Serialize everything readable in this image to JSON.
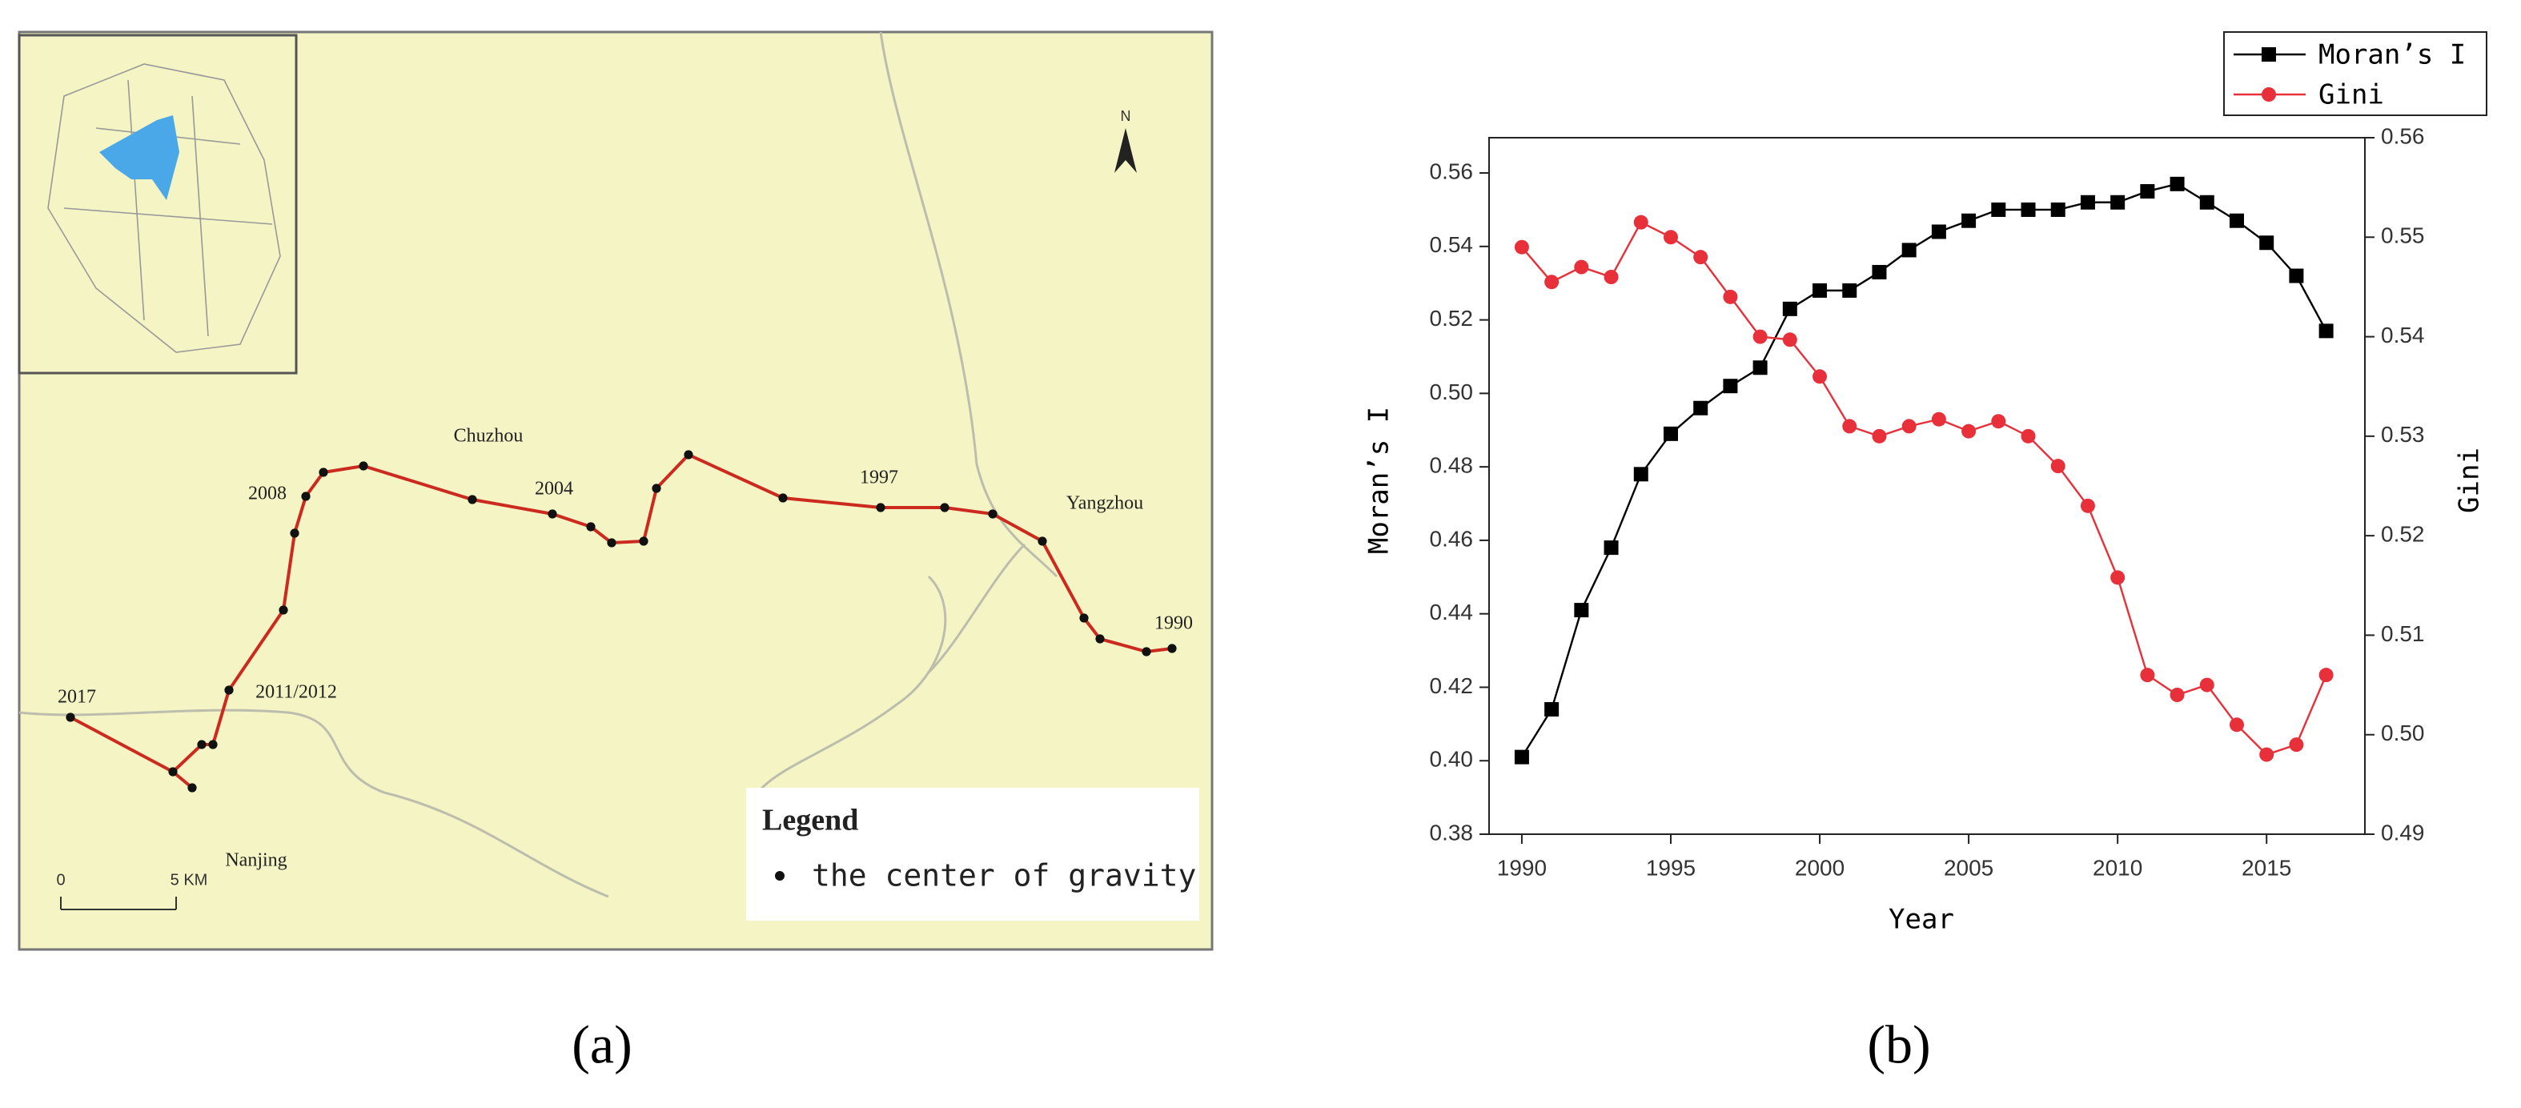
{
  "map": {
    "caption": "(a)",
    "north": "N",
    "places": [
      "Chuzhou",
      "Yangzhou",
      "Nanjing"
    ],
    "years": [
      "2008",
      "2004",
      "1997",
      "1990",
      "2017",
      "2011/2012"
    ],
    "legend_title": "Legend",
    "legend_item": "the center of gravity",
    "scale_labels": [
      "0",
      "5 KM"
    ]
  },
  "chart_data": {
    "type": "line",
    "caption": "(b)",
    "xlabel": "Year",
    "ylabel": "Moran’s I",
    "y2label": "Gini",
    "x": [
      1990,
      1991,
      1992,
      1993,
      1994,
      1995,
      1996,
      1997,
      1998,
      1999,
      2000,
      2001,
      2002,
      2003,
      2004,
      2005,
      2006,
      2007,
      2008,
      2009,
      2010,
      2011,
      2012,
      2013,
      2014,
      2015,
      2016,
      2017
    ],
    "xlim": [
      1988.9,
      2018.3
    ],
    "xticks": [
      1990,
      1995,
      2000,
      2005,
      2010,
      2015
    ],
    "ylim": [
      0.38,
      0.5696
    ],
    "yticks": [
      0.38,
      {
        "value": 0.4,
        "label": "0.40"
      },
      0.42,
      0.44,
      0.46,
      0.48,
      {
        "value": 0.5,
        "label": "0.50"
      },
      0.52,
      0.54,
      0.56
    ],
    "y2lim": [
      0.49,
      0.56
    ],
    "y2ticks": [
      0.49,
      {
        "value": 0.5,
        "label": "0.50"
      },
      0.51,
      0.52,
      0.53,
      0.54,
      0.55,
      0.56
    ],
    "series": [
      {
        "name": "Moran’s I",
        "color": "#000000",
        "marker": "square",
        "values": [
          0.401,
          0.414,
          0.441,
          0.458,
          0.478,
          0.489,
          0.496,
          0.502,
          0.507,
          0.523,
          0.528,
          0.528,
          0.533,
          0.539,
          0.544,
          0.547,
          0.55,
          0.55,
          0.55,
          0.552,
          0.552,
          0.555,
          0.557,
          0.552,
          0.547,
          0.541,
          0.532,
          0.517
        ]
      },
      {
        "name": "Gini",
        "color": "#e8303a",
        "marker": "circle",
        "axis": "y2",
        "values": [
          0.549,
          0.5455,
          0.547,
          0.546,
          0.5515,
          0.55,
          0.548,
          0.544,
          0.54,
          0.5397,
          0.536,
          0.531,
          0.53,
          0.531,
          0.5317,
          0.5305,
          0.5315,
          0.53,
          0.527,
          0.523,
          0.5158,
          0.506,
          0.504,
          0.505,
          0.501,
          0.498,
          0.499,
          0.506
        ]
      }
    ]
  }
}
